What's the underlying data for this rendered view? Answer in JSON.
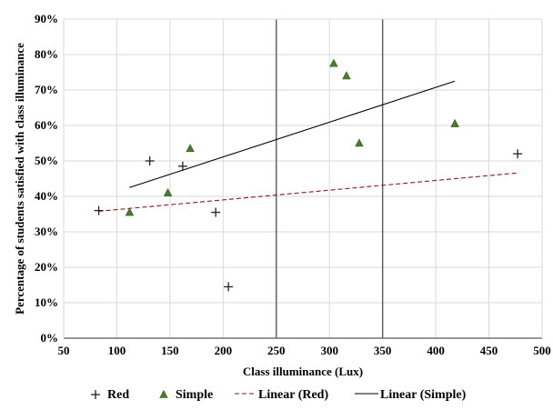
{
  "chart_data": {
    "type": "scatter",
    "title": "",
    "xlabel": "Class illuminance (Lux)",
    "ylabel": "Percentage of students satisfied with class illuminance",
    "xlim": [
      50,
      500
    ],
    "ylim": [
      0,
      90
    ],
    "x_ticks": [
      50,
      100,
      150,
      200,
      250,
      300,
      350,
      400,
      450,
      500
    ],
    "y_ticks": [
      0,
      10,
      20,
      30,
      40,
      50,
      60,
      70,
      80,
      90
    ],
    "x_tick_labels": [
      "50",
      "100",
      "150",
      "200",
      "250",
      "300",
      "350",
      "400",
      "450",
      "500"
    ],
    "y_tick_labels": [
      "0%",
      "10%",
      "20%",
      "30%",
      "40%",
      "50%",
      "60%",
      "70%",
      "80%",
      "90%"
    ],
    "grid": true,
    "emphasized_gridlines_x": [
      250,
      350
    ],
    "legend_position": "bottom",
    "series": [
      {
        "name": "Red",
        "marker": "plus",
        "color": "#222222",
        "points": [
          {
            "x": 83,
            "y": 36
          },
          {
            "x": 131,
            "y": 50
          },
          {
            "x": 162,
            "y": 48.5
          },
          {
            "x": 193,
            "y": 35.5
          },
          {
            "x": 205,
            "y": 14.5
          },
          {
            "x": 477,
            "y": 52
          }
        ]
      },
      {
        "name": "Simple",
        "marker": "triangle",
        "color": "#4a7d2a",
        "points": [
          {
            "x": 112,
            "y": 35.5
          },
          {
            "x": 148,
            "y": 41
          },
          {
            "x": 169,
            "y": 53.5
          },
          {
            "x": 304,
            "y": 77.5
          },
          {
            "x": 316,
            "y": 74
          },
          {
            "x": 328,
            "y": 55
          },
          {
            "x": 418,
            "y": 60.5
          }
        ]
      }
    ],
    "trendlines": [
      {
        "name": "Linear (Red)",
        "style": "dashed",
        "color": "#8b1a1a",
        "x": [
          83,
          477
        ],
        "y": [
          35.8,
          46.6
        ]
      },
      {
        "name": "Linear (Simple)",
        "style": "solid",
        "color": "#000000",
        "x": [
          112,
          418
        ],
        "y": [
          42.5,
          72.5
        ]
      }
    ],
    "legend": [
      {
        "label": "Red",
        "marker": "plus"
      },
      {
        "label": "Simple",
        "marker": "triangle"
      },
      {
        "label": "Linear (Red)",
        "marker": "dashed-line"
      },
      {
        "label": "Linear (Simple)",
        "marker": "solid-line"
      }
    ]
  }
}
